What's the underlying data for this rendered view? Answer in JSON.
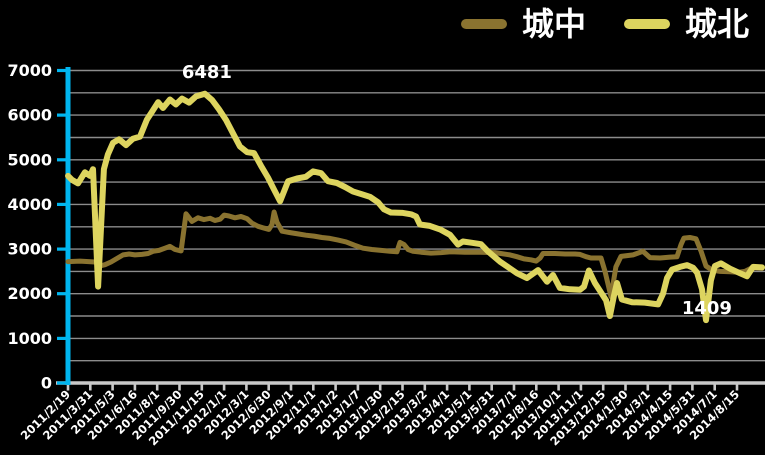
{
  "chart_data": {
    "type": "line",
    "title": "",
    "xlabel": "",
    "ylabel": "",
    "ylim": [
      0,
      7000
    ],
    "y_tick_step": 1000,
    "gridline_step": 500,
    "grid": true,
    "legend_position": "top-right",
    "y_tick_labels": [
      "0",
      "1000",
      "2000",
      "3000",
      "4000",
      "5000",
      "6000",
      "7000"
    ],
    "x_tick_labels": [
      "2011/2/19",
      "2011/3/31",
      "2011/5/3",
      "2011/6/16",
      "2011/8/1",
      "2011/9/30",
      "2011/11/15",
      "2012/1/1",
      "2012/3/1",
      "2012/6/30",
      "2012/9/1",
      "2012/11/1",
      "2013/1/2",
      "2013/1/7",
      "2013/1/30",
      "2013/2/15",
      "2013/3/2",
      "2013/4/1",
      "2013/5/1",
      "2013/5/31",
      "2013/7/1",
      "2013/8/16",
      "2013/10/1",
      "2013/11/1",
      "2013/12/15",
      "2014/1/30",
      "2014/3/1",
      "2014/4/15",
      "2014/5/31",
      "2014/7/1",
      "2014/8/15"
    ],
    "colors": {
      "background": "#000000",
      "gridline": "#8c8c8c",
      "x_axis": "#c9c9c9",
      "y_axis": "#00b6f0",
      "label": "#ffffff"
    },
    "series": [
      {
        "name": "城中",
        "color": "#8a7330",
        "points": [
          [
            0,
            2720
          ],
          [
            0.54,
            2730
          ],
          [
            1.21,
            2710
          ],
          [
            1.43,
            2620
          ],
          [
            1.66,
            2650
          ],
          [
            1.93,
            2710
          ],
          [
            2.2,
            2790
          ],
          [
            2.47,
            2870
          ],
          [
            2.74,
            2890
          ],
          [
            3,
            2870
          ],
          [
            3.32,
            2880
          ],
          [
            3.59,
            2900
          ],
          [
            3.81,
            2950
          ],
          [
            4.08,
            2970
          ],
          [
            4.35,
            3020
          ],
          [
            4.57,
            3060
          ],
          [
            4.8,
            2990
          ],
          [
            5.07,
            2960
          ],
          [
            5.29,
            3790
          ],
          [
            5.56,
            3620
          ],
          [
            5.83,
            3700
          ],
          [
            6.1,
            3660
          ],
          [
            6.37,
            3690
          ],
          [
            6.59,
            3640
          ],
          [
            6.82,
            3670
          ],
          [
            7,
            3760
          ],
          [
            7.22,
            3740
          ],
          [
            7.49,
            3700
          ],
          [
            7.76,
            3730
          ],
          [
            8.03,
            3680
          ],
          [
            8.25,
            3580
          ],
          [
            8.52,
            3510
          ],
          [
            8.79,
            3470
          ],
          [
            9.01,
            3440
          ],
          [
            9.15,
            3550
          ],
          [
            9.24,
            3830
          ],
          [
            9.37,
            3600
          ],
          [
            9.6,
            3400
          ],
          [
            9.96,
            3370
          ],
          [
            10.31,
            3340
          ],
          [
            10.67,
            3310
          ],
          [
            11.03,
            3290
          ],
          [
            11.39,
            3260
          ],
          [
            11.75,
            3240
          ],
          [
            12.11,
            3200
          ],
          [
            12.47,
            3160
          ],
          [
            12.83,
            3090
          ],
          [
            13.23,
            3020
          ],
          [
            13.63,
            2990
          ],
          [
            14.04,
            2970
          ],
          [
            14.44,
            2950
          ],
          [
            14.75,
            2940
          ],
          [
            14.89,
            3150
          ],
          [
            15.07,
            3100
          ],
          [
            15.25,
            2990
          ],
          [
            15.47,
            2950
          ],
          [
            15.83,
            2930
          ],
          [
            16.28,
            2910
          ],
          [
            16.73,
            2920
          ],
          [
            17.17,
            2940
          ],
          [
            17.8,
            2930
          ],
          [
            18.48,
            2930
          ],
          [
            19.15,
            2920
          ],
          [
            19.82,
            2870
          ],
          [
            20.13,
            2830
          ],
          [
            20.45,
            2780
          ],
          [
            20.76,
            2760
          ],
          [
            20.99,
            2730
          ],
          [
            21.17,
            2800
          ],
          [
            21.3,
            2900
          ],
          [
            21.84,
            2900
          ],
          [
            22.29,
            2890
          ],
          [
            22.74,
            2890
          ],
          [
            22.96,
            2880
          ],
          [
            23.23,
            2830
          ],
          [
            23.45,
            2800
          ],
          [
            23.9,
            2800
          ],
          [
            24.08,
            2500
          ],
          [
            24.35,
            1935
          ],
          [
            24.57,
            2600
          ],
          [
            24.8,
            2835
          ],
          [
            25.34,
            2870
          ],
          [
            25.78,
            2950
          ],
          [
            26.1,
            2810
          ],
          [
            26.55,
            2800
          ],
          [
            27,
            2820
          ],
          [
            27.31,
            2830
          ],
          [
            27.49,
            3100
          ],
          [
            27.62,
            3245
          ],
          [
            27.89,
            3260
          ],
          [
            28.16,
            3230
          ],
          [
            28.39,
            2950
          ],
          [
            28.61,
            2620
          ],
          [
            28.88,
            2530
          ],
          [
            29.24,
            2500
          ],
          [
            29.69,
            2490
          ],
          [
            30.04,
            2480
          ],
          [
            30.36,
            2500
          ],
          [
            30.67,
            2580
          ],
          [
            31.12,
            2570
          ]
        ]
      },
      {
        "name": "城北",
        "color": "#ddd45f",
        "points": [
          [
            0,
            4640
          ],
          [
            0.18,
            4550
          ],
          [
            0.45,
            4470
          ],
          [
            0.76,
            4720
          ],
          [
            0.99,
            4640
          ],
          [
            1.12,
            4790
          ],
          [
            1.35,
            2160
          ],
          [
            1.61,
            4790
          ],
          [
            1.79,
            5120
          ],
          [
            2.02,
            5380
          ],
          [
            2.29,
            5460
          ],
          [
            2.6,
            5330
          ],
          [
            2.91,
            5470
          ],
          [
            3.23,
            5520
          ],
          [
            3.54,
            5900
          ],
          [
            3.77,
            6080
          ],
          [
            4.04,
            6290
          ],
          [
            4.26,
            6160
          ],
          [
            4.57,
            6350
          ],
          [
            4.84,
            6240
          ],
          [
            5.11,
            6370
          ],
          [
            5.43,
            6280
          ],
          [
            5.74,
            6420
          ],
          [
            6.14,
            6481
          ],
          [
            6.46,
            6340
          ],
          [
            6.77,
            6130
          ],
          [
            7.09,
            5890
          ],
          [
            7.4,
            5590
          ],
          [
            7.71,
            5300
          ],
          [
            8.03,
            5170
          ],
          [
            8.34,
            5150
          ],
          [
            8.65,
            4870
          ],
          [
            8.97,
            4600
          ],
          [
            9.24,
            4330
          ],
          [
            9.51,
            4070
          ],
          [
            9.87,
            4520
          ],
          [
            10.27,
            4580
          ],
          [
            10.67,
            4620
          ],
          [
            10.99,
            4740
          ],
          [
            11.35,
            4700
          ],
          [
            11.66,
            4520
          ],
          [
            12.06,
            4480
          ],
          [
            12.42,
            4390
          ],
          [
            12.78,
            4290
          ],
          [
            13.18,
            4230
          ],
          [
            13.54,
            4170
          ],
          [
            13.9,
            4050
          ],
          [
            14.17,
            3890
          ],
          [
            14.48,
            3820
          ],
          [
            15.02,
            3810
          ],
          [
            15.38,
            3780
          ],
          [
            15.61,
            3730
          ],
          [
            15.78,
            3550
          ],
          [
            16.23,
            3520
          ],
          [
            16.68,
            3440
          ],
          [
            17.13,
            3320
          ],
          [
            17.49,
            3100
          ],
          [
            17.71,
            3170
          ],
          [
            18.12,
            3140
          ],
          [
            18.52,
            3110
          ],
          [
            18.83,
            2950
          ],
          [
            19.37,
            2720
          ],
          [
            19.78,
            2580
          ],
          [
            20.13,
            2460
          ],
          [
            20.58,
            2350
          ],
          [
            21.08,
            2530
          ],
          [
            21.48,
            2270
          ],
          [
            21.75,
            2420
          ],
          [
            22.06,
            2130
          ],
          [
            22.51,
            2100
          ],
          [
            22.96,
            2090
          ],
          [
            23.14,
            2160
          ],
          [
            23.36,
            2520
          ],
          [
            23.63,
            2240
          ],
          [
            23.86,
            2060
          ],
          [
            24.13,
            1850
          ],
          [
            24.3,
            1500
          ],
          [
            24.48,
            1950
          ],
          [
            24.62,
            2240
          ],
          [
            24.84,
            1870
          ],
          [
            25.29,
            1810
          ],
          [
            25.87,
            1800
          ],
          [
            26.46,
            1760
          ],
          [
            26.68,
            2000
          ],
          [
            26.86,
            2350
          ],
          [
            27.09,
            2540
          ],
          [
            27.44,
            2600
          ],
          [
            27.76,
            2640
          ],
          [
            28.03,
            2580
          ],
          [
            28.21,
            2470
          ],
          [
            28.43,
            2100
          ],
          [
            28.61,
            1409
          ],
          [
            28.83,
            2300
          ],
          [
            29.01,
            2620
          ],
          [
            29.28,
            2680
          ],
          [
            29.69,
            2560
          ],
          [
            30.13,
            2460
          ],
          [
            30.45,
            2390
          ],
          [
            30.72,
            2600
          ],
          [
            31.12,
            2590
          ]
        ]
      }
    ],
    "annotations": [
      {
        "label": "6481",
        "x_index": 6.23,
        "y_value": 6830
      },
      {
        "label": "1409",
        "x_index": 28.65,
        "y_value": 1550
      }
    ]
  }
}
